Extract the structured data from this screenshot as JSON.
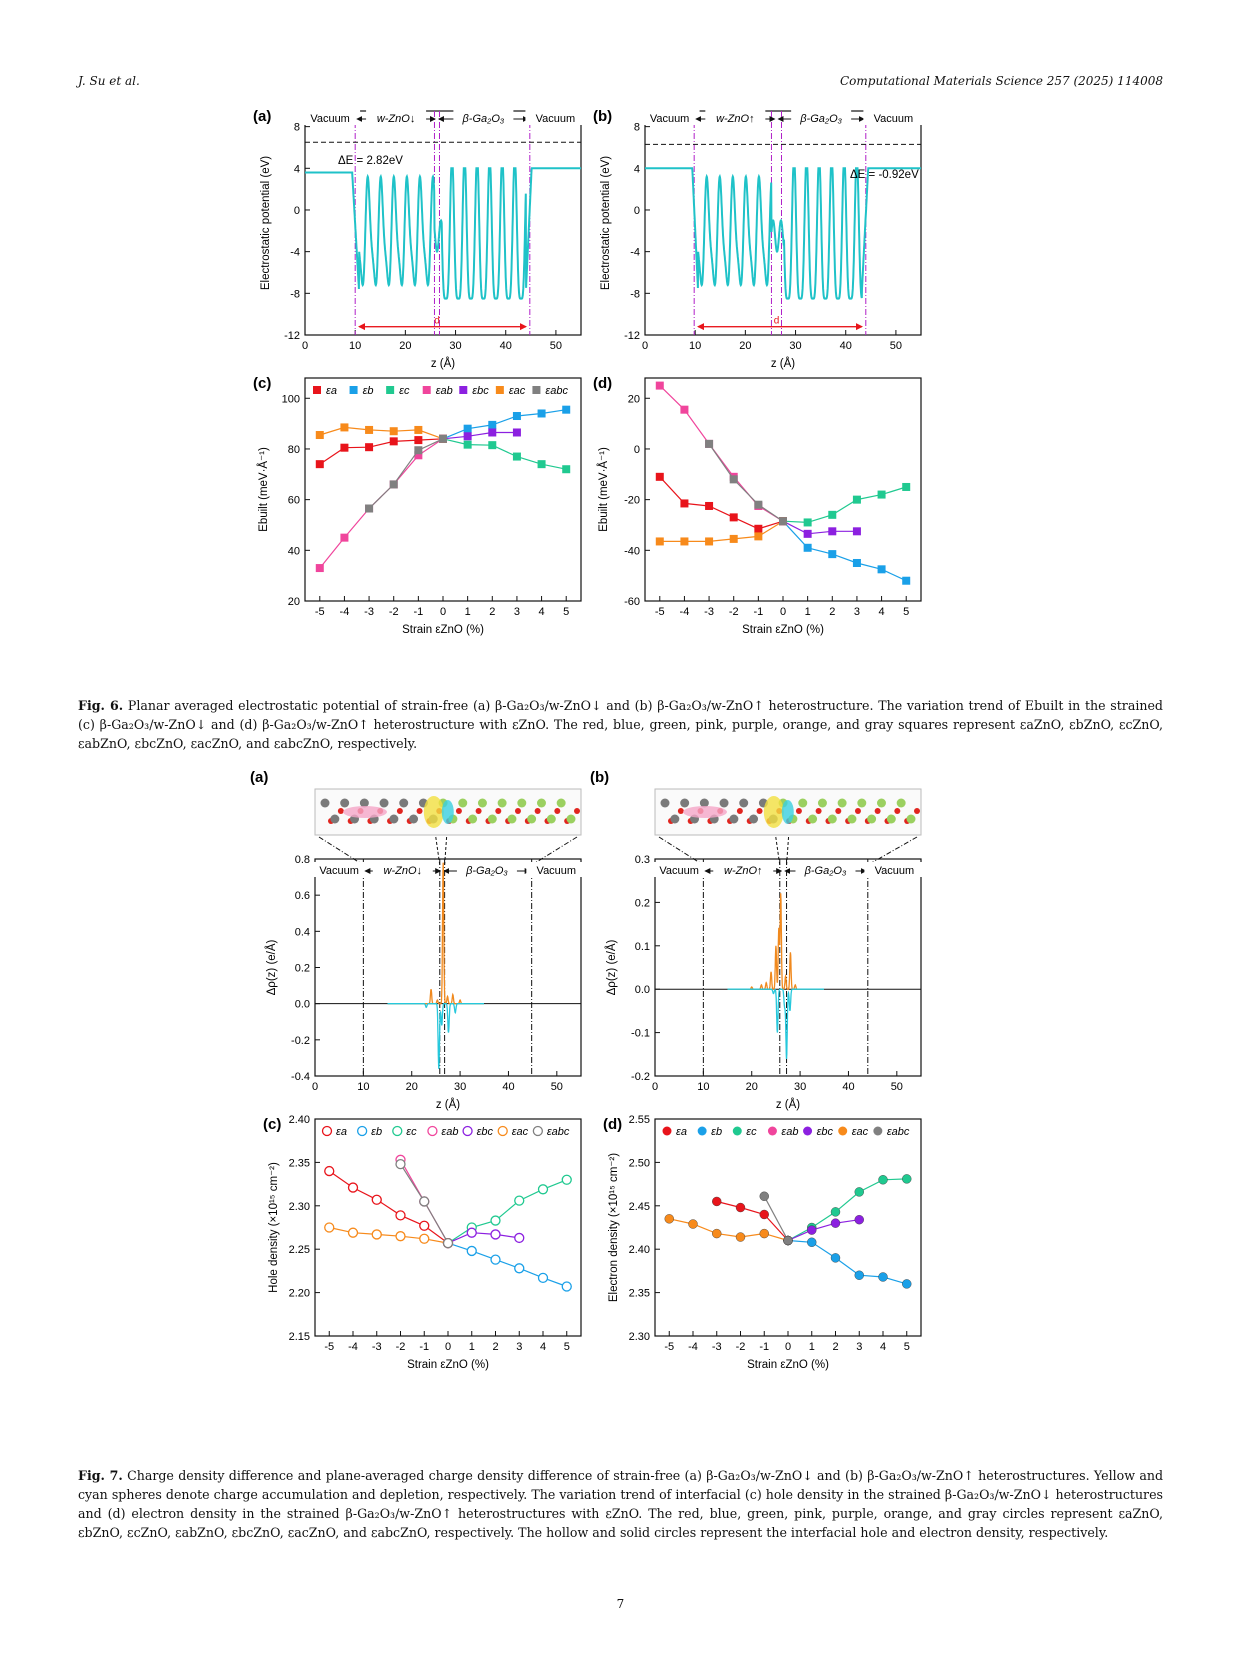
{
  "header": {
    "left": "J. Su et al.",
    "right": "Computational Materials Science 257 (2025) 114008"
  },
  "page_number": "7",
  "colors": {
    "a": "#e8141b",
    "b": "#1aa0e8",
    "c": "#20c990",
    "ab": "#f0459c",
    "bc": "#8c20e0",
    "ac": "#f78a1b",
    "abc": "#808080",
    "potential": "#1fc2c8",
    "d_arrow": "#e8141b",
    "interface": "#b020c8",
    "accum": "#f0891e",
    "deplet": "#26c8dc"
  },
  "fig6": {
    "panels": [
      {
        "label": "(a)",
        "regions": [
          "Vacuum",
          "w-ZnO↓",
          "β-Ga₂O₃",
          "Vacuum"
        ],
        "delta_e": "ΔE = 2.82eV",
        "d_label": "d",
        "ylabel": "Electrostatic potential (eV)",
        "xlabel": "z (Å)",
        "xticks": [
          "0",
          "10",
          "20",
          "30",
          "40",
          "50"
        ],
        "yticks": [
          "-12",
          "-8",
          "-4",
          "0",
          "4",
          "8"
        ]
      },
      {
        "label": "(b)",
        "regions": [
          "Vacuum",
          "w-ZnO↑",
          "β-Ga₂O₃",
          "Vacuum"
        ],
        "delta_e": "ΔE = -0.92eV",
        "d_label": "d",
        "ylabel": "Electrostatic potential (eV)",
        "xlabel": "z (Å)",
        "xticks": [
          "0",
          "10",
          "20",
          "30",
          "40",
          "50"
        ],
        "yticks": [
          "-12",
          "-8",
          "-4",
          "0",
          "4",
          "8"
        ]
      }
    ],
    "caption_label": "Fig. 6.",
    "caption_text": "Planar averaged electrostatic potential of strain-free (a) β-Ga₂O₃/w-ZnO↓ and (b) β-Ga₂O₃/w-ZnO↑ heterostructure. The variation trend of Ebuilt in the strained (c) β-Ga₂O₃/w-ZnO↓ and (d) β-Ga₂O₃/w-ZnO↑ heterostructure with εZnO. The red, blue, green, pink, purple, orange, and gray squares represent εaZnO, εbZnO, εcZnO, εabZnO, εbcZnO, εacZnO, and εabcZnO, respectively."
  },
  "fig7": {
    "panels": [
      {
        "label": "(a)",
        "regions": [
          "Vacuum",
          "w-ZnO↓",
          "β-Ga₂O₃",
          "Vacuum"
        ],
        "ylabel": "Δρ(z) (e/Å)",
        "xlabel": "z (Å)",
        "xticks": [
          "0",
          "10",
          "20",
          "30",
          "40",
          "50"
        ],
        "yticks": [
          "-0.4",
          "-0.2",
          "0.0",
          "0.2",
          "0.4",
          "0.6",
          "0.8"
        ]
      },
      {
        "label": "(b)",
        "regions": [
          "Vacuum",
          "w-ZnO↑",
          "β-Ga₂O₃",
          "Vacuum"
        ],
        "ylabel": "Δρ(z) (e/Å)",
        "xlabel": "z (Å)",
        "xticks": [
          "0",
          "10",
          "20",
          "30",
          "40",
          "50"
        ],
        "yticks": [
          "-0.2",
          "-0.1",
          "0.0",
          "0.1",
          "0.2",
          "0.3"
        ]
      }
    ],
    "caption_label": "Fig. 7.",
    "caption_text": "Charge density difference and plane-averaged charge density difference of strain-free (a) β-Ga₂O₃/w-ZnO↓ and (b) β-Ga₂O₃/w-ZnO↑ heterostructures. Yellow and cyan spheres denote charge accumulation and depletion, respectively. The variation trend of interfacial (c) hole density in the strained β-Ga₂O₃/w-ZnO↓ heterostructures and (d) electron density in the strained β-Ga₂O₃/w-ZnO↑ heterostructures with εZnO. The red, blue, green, pink, purple, orange, and gray circles represent εaZnO, εbZnO, εcZnO, εabZnO, εbcZnO, εacZnO, and εabcZnO, respectively. The hollow and solid circles represent the interfacial hole and electron density, respectively."
  },
  "chart_data": [
    {
      "id": "fig6c",
      "type": "line",
      "panel_label": "(c)",
      "marker": "square",
      "xlabel": "Strain εZnO (%)",
      "ylabel": "Ebuilt (meV·Å⁻¹)",
      "xlim": [
        -5.6,
        5.6
      ],
      "ylim": [
        20,
        108
      ],
      "xticks": [
        -5,
        -4,
        -3,
        -2,
        -1,
        0,
        1,
        2,
        3,
        4,
        5
      ],
      "yticks": [
        20,
        40,
        60,
        80,
        100
      ],
      "legend": [
        "εa",
        "εb",
        "εc",
        "εab",
        "εbc",
        "εac",
        "εabc"
      ],
      "series": [
        {
          "key": "a",
          "x": [
            -5,
            -4,
            -3,
            -2,
            -1,
            0
          ],
          "y": [
            74,
            80.5,
            80.7,
            83,
            83.5,
            84
          ]
        },
        {
          "key": "b",
          "x": [
            0,
            1,
            2,
            3,
            4,
            5
          ],
          "y": [
            84,
            88,
            89.5,
            93,
            94,
            95.5
          ]
        },
        {
          "key": "c",
          "x": [
            0,
            1,
            2,
            3,
            4,
            5
          ],
          "y": [
            84,
            81.7,
            81.5,
            77,
            74,
            72
          ]
        },
        {
          "key": "ab",
          "x": [
            -5,
            -4,
            -3,
            -2,
            -1,
            0
          ],
          "y": [
            33,
            45,
            56.5,
            66,
            77.5,
            84
          ]
        },
        {
          "key": "bc",
          "x": [
            0,
            1,
            2,
            3
          ],
          "y": [
            84,
            85,
            86.5,
            86.5
          ]
        },
        {
          "key": "ac",
          "x": [
            -5,
            -4,
            -3,
            -2,
            -1,
            0
          ],
          "y": [
            85.5,
            88.5,
            87.5,
            87,
            87.5,
            84
          ]
        },
        {
          "key": "abc",
          "x": [
            -3,
            -2,
            -1,
            0
          ],
          "y": [
            56.5,
            66,
            79.5,
            84
          ]
        }
      ]
    },
    {
      "id": "fig6d",
      "type": "line",
      "panel_label": "(d)",
      "marker": "square",
      "xlabel": "Strain εZnO (%)",
      "ylabel": "Ebuilt (meV·Å⁻¹)",
      "xlim": [
        -5.6,
        5.6
      ],
      "ylim": [
        -60,
        28
      ],
      "xticks": [
        -5,
        -4,
        -3,
        -2,
        -1,
        0,
        1,
        2,
        3,
        4,
        5
      ],
      "yticks": [
        -60,
        -40,
        -20,
        0,
        20
      ],
      "series": [
        {
          "key": "a",
          "x": [
            -5,
            -4,
            -3,
            -2,
            -1,
            0
          ],
          "y": [
            -11,
            -21.5,
            -22.5,
            -27,
            -31.5,
            -28.5
          ]
        },
        {
          "key": "b",
          "x": [
            0,
            1,
            2,
            3,
            4,
            5
          ],
          "y": [
            -28.5,
            -39,
            -41.5,
            -45,
            -47.5,
            -52
          ]
        },
        {
          "key": "c",
          "x": [
            0,
            1,
            2,
            3,
            4,
            5
          ],
          "y": [
            -28.5,
            -29,
            -26,
            -20,
            -18,
            -15
          ]
        },
        {
          "key": "ab",
          "x": [
            -5,
            -4,
            -3,
            -2,
            -1,
            0
          ],
          "y": [
            25,
            15.5,
            2,
            -11,
            -22.5,
            -28.5
          ]
        },
        {
          "key": "bc",
          "x": [
            0,
            1,
            2,
            3
          ],
          "y": [
            -28.5,
            -33.5,
            -32.5,
            -32.5
          ]
        },
        {
          "key": "ac",
          "x": [
            -5,
            -4,
            -3,
            -2,
            -1,
            0
          ],
          "y": [
            -36.5,
            -36.5,
            -36.5,
            -35.5,
            -34.5,
            -28.5
          ]
        },
        {
          "key": "abc",
          "x": [
            -3,
            -2,
            -1,
            0
          ],
          "y": [
            2,
            -12,
            -22,
            -28.5
          ]
        }
      ]
    },
    {
      "id": "fig7c",
      "type": "line",
      "panel_label": "(c)",
      "marker": "hollow-circle",
      "xlabel": "Strain εZnO (%)",
      "ylabel": "Hole density (×10¹⁵ cm⁻²)",
      "xlim": [
        -5.6,
        5.6
      ],
      "ylim": [
        2.15,
        2.4
      ],
      "xticks": [
        -5,
        -4,
        -3,
        -2,
        -1,
        0,
        1,
        2,
        3,
        4,
        5
      ],
      "yticks": [
        2.15,
        2.2,
        2.25,
        2.3,
        2.35,
        2.4
      ],
      "legend": [
        "εa",
        "εb",
        "εc",
        "εab",
        "εbc",
        "εac",
        "εabc"
      ],
      "series": [
        {
          "key": "a",
          "x": [
            -5,
            -4,
            -3,
            -2,
            -1,
            0
          ],
          "y": [
            2.34,
            2.321,
            2.307,
            2.289,
            2.277,
            2.257
          ]
        },
        {
          "key": "b",
          "x": [
            0,
            1,
            2,
            3,
            4,
            5
          ],
          "y": [
            2.257,
            2.248,
            2.238,
            2.228,
            2.217,
            2.207
          ]
        },
        {
          "key": "c",
          "x": [
            0,
            1,
            2,
            3,
            4,
            5
          ],
          "y": [
            2.257,
            2.275,
            2.283,
            2.306,
            2.319,
            2.33
          ]
        },
        {
          "key": "ab",
          "x": [
            -2,
            -1,
            0
          ],
          "y": [
            2.353,
            2.305,
            2.257
          ]
        },
        {
          "key": "bc",
          "x": [
            0,
            1,
            2,
            3
          ],
          "y": [
            2.257,
            2.269,
            2.267,
            2.263
          ]
        },
        {
          "key": "ac",
          "x": [
            -5,
            -4,
            -3,
            -2,
            -1,
            0
          ],
          "y": [
            2.275,
            2.269,
            2.267,
            2.265,
            2.262,
            2.257
          ]
        },
        {
          "key": "abc",
          "x": [
            -2,
            -1,
            0
          ],
          "y": [
            2.348,
            2.305,
            2.257
          ]
        }
      ]
    },
    {
      "id": "fig7d",
      "type": "line",
      "panel_label": "(d)",
      "marker": "solid-circle",
      "xlabel": "Strain εZnO (%)",
      "ylabel": "Electron density (×10¹⁵ cm⁻²)",
      "xlim": [
        -5.6,
        5.6
      ],
      "ylim": [
        2.3,
        2.55
      ],
      "xticks": [
        -5,
        -4,
        -3,
        -2,
        -1,
        0,
        1,
        2,
        3,
        4,
        5
      ],
      "yticks": [
        2.3,
        2.35,
        2.4,
        2.45,
        2.5,
        2.55
      ],
      "legend": [
        "εa",
        "εb",
        "εc",
        "εab",
        "εbc",
        "εac",
        "εabc"
      ],
      "series": [
        {
          "key": "a",
          "x": [
            -3,
            -2,
            -1,
            0
          ],
          "y": [
            2.455,
            2.448,
            2.44,
            2.41
          ]
        },
        {
          "key": "b",
          "x": [
            0,
            1,
            2,
            3,
            4,
            5
          ],
          "y": [
            2.41,
            2.408,
            2.39,
            2.37,
            2.368,
            2.36
          ]
        },
        {
          "key": "c",
          "x": [
            0,
            1,
            2,
            3,
            4,
            5
          ],
          "y": [
            2.41,
            2.425,
            2.443,
            2.466,
            2.48,
            2.481
          ]
        },
        {
          "key": "bc",
          "x": [
            0,
            1,
            2,
            3
          ],
          "y": [
            2.41,
            2.422,
            2.43,
            2.434
          ]
        },
        {
          "key": "ac",
          "x": [
            -5,
            -4,
            -3,
            -2,
            -1,
            0
          ],
          "y": [
            2.435,
            2.429,
            2.418,
            2.414,
            2.418,
            2.41
          ]
        },
        {
          "key": "abc",
          "x": [
            -1,
            0
          ],
          "y": [
            2.461,
            2.41
          ]
        }
      ]
    }
  ]
}
